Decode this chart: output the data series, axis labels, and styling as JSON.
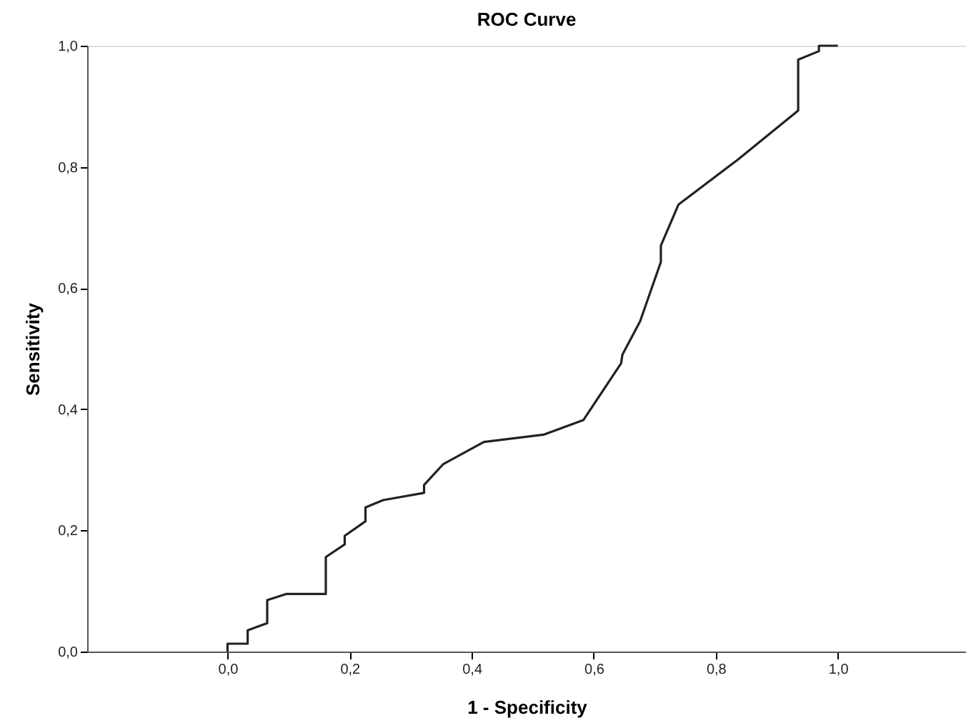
{
  "chart_data": {
    "type": "line",
    "title": "ROC Curve",
    "xlabel": "1 - Specificity",
    "ylabel": "Sensitivity",
    "xlim": [
      -0.23,
      1.21
    ],
    "ylim": [
      0,
      1
    ],
    "xticks": [
      {
        "value": 0,
        "label": "0,0"
      },
      {
        "value": 0.2,
        "label": "0,2"
      },
      {
        "value": 0.4,
        "label": "0,4"
      },
      {
        "value": 0.6,
        "label": "0,6"
      },
      {
        "value": 0.8,
        "label": "0,8"
      },
      {
        "value": 1,
        "label": "1,0"
      }
    ],
    "yticks": [
      {
        "value": 0,
        "label": "0,0"
      },
      {
        "value": 0.2,
        "label": "0,2"
      },
      {
        "value": 0.4,
        "label": "0,4"
      },
      {
        "value": 0.6,
        "label": "0,6"
      },
      {
        "value": 0.8,
        "label": "0,8"
      },
      {
        "value": 1,
        "label": "1,0"
      }
    ],
    "grid": false,
    "marker": "none",
    "line_style": "solid",
    "series": [
      {
        "color": "#222222",
        "x": [
          0,
          0,
          0.033,
          0.033,
          0.065,
          0.065,
          0.096,
          0.161,
          0.161,
          0.192,
          0.192,
          0.226,
          0.226,
          0.255,
          0.322,
          0.322,
          0.353,
          0.42,
          0.518,
          0.583,
          0.645,
          0.647,
          0.676,
          0.71,
          0.71,
          0.739,
          0.835,
          0.935,
          0.935,
          0.969,
          0.969,
          1.0
        ],
        "values": [
          0,
          0.013,
          0.013,
          0.035,
          0.047,
          0.085,
          0.095,
          0.095,
          0.156,
          0.177,
          0.191,
          0.215,
          0.238,
          0.25,
          0.262,
          0.275,
          0.309,
          0.346,
          0.358,
          0.382,
          0.476,
          0.49,
          0.545,
          0.643,
          0.67,
          0.738,
          0.811,
          0.893,
          0.977,
          0.991,
          1.0,
          1.0
        ]
      }
    ]
  }
}
